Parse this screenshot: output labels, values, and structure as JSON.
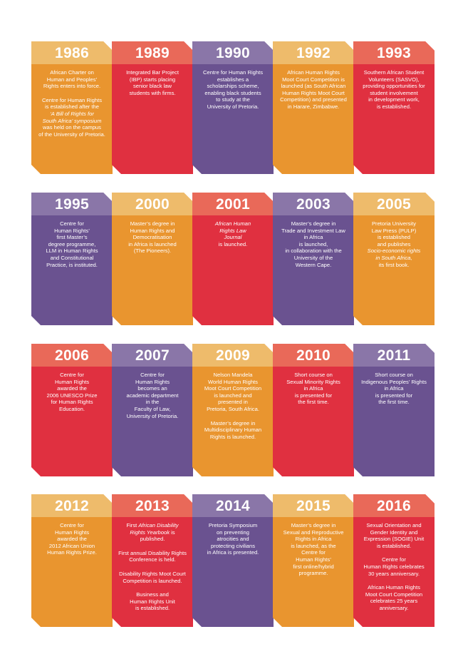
{
  "rows": [
    [
      {
        "year": "1986",
        "color": "orange",
        "paras": [
          [
            {
              "t": "African Charter on"
            },
            {
              "t": "Human and Peoples’"
            },
            {
              "t": "Rights enters into force."
            }
          ],
          [
            {
              "t": "Centre for Human Rights"
            },
            {
              "t": "is established after the"
            },
            {
              "t": "‘A Bill of Rights for",
              "i": true
            },
            {
              "t": "South Africa’ symposium",
              "i": true
            },
            {
              "t": "was held on the campus"
            },
            {
              "t": "of the University of Pretoria."
            }
          ]
        ]
      },
      {
        "year": "1989",
        "color": "red",
        "paras": [
          [
            {
              "t": "Integrated Bar Project"
            },
            {
              "t": "(IBP) starts placing"
            },
            {
              "t": "senior black law"
            },
            {
              "t": "students with firms."
            }
          ]
        ]
      },
      {
        "year": "1990",
        "color": "purple",
        "paras": [
          [
            {
              "t": "Centre for Human Rights"
            },
            {
              "t": "establishes a"
            },
            {
              "t": "scholarships scheme,"
            },
            {
              "t": "enabling black students"
            },
            {
              "t": "to study at the"
            },
            {
              "t": "University of Pretoria."
            }
          ]
        ]
      },
      {
        "year": "1992",
        "color": "orange",
        "paras": [
          [
            {
              "t": "African Human Rights"
            },
            {
              "t": "Moot Court Competition is"
            },
            {
              "t": "launched (as South African"
            },
            {
              "t": "Human Rights Moot Court"
            },
            {
              "t": "Competition) and presented"
            },
            {
              "t": "in Harare, Zimbabwe."
            }
          ]
        ]
      },
      {
        "year": "1993",
        "color": "red",
        "paras": [
          [
            {
              "t": "Southern African Student"
            },
            {
              "t": "Volunteers (SASVO),"
            },
            {
              "t": "providing opportunities for"
            },
            {
              "t": "student involvement"
            },
            {
              "t": "in development work,"
            },
            {
              "t": "is established."
            }
          ]
        ]
      }
    ],
    [
      {
        "year": "1995",
        "color": "purple",
        "paras": [
          [
            {
              "t": "Centre for"
            },
            {
              "t": "Human Rights’"
            },
            {
              "t": "first Master’s"
            },
            {
              "t": "degree programme,"
            },
            {
              "t": "LLM in Human Rights"
            },
            {
              "t": "and Constitutional"
            },
            {
              "t": "Practice, is instituted."
            }
          ]
        ]
      },
      {
        "year": "2000",
        "color": "orange",
        "paras": [
          [
            {
              "t": "Master’s degree in"
            },
            {
              "t": "Human Rights and"
            },
            {
              "t": "Democratisation"
            },
            {
              "t": "in Africa is launched"
            },
            {
              "t": "(The Pioneers)."
            }
          ]
        ]
      },
      {
        "year": "2001",
        "color": "red",
        "paras": [
          [
            {
              "t": "African Human",
              "i": true
            },
            {
              "t": "Rights Law",
              "i": true
            },
            {
              "t": "Journal",
              "i": true
            },
            {
              "t": "is launched."
            }
          ]
        ]
      },
      {
        "year": "2003",
        "color": "purple",
        "paras": [
          [
            {
              "t": "Master’s degree in"
            },
            {
              "t": "Trade and Investment Law"
            },
            {
              "t": "in Africa"
            },
            {
              "t": "is launched,"
            },
            {
              "t": "in collaboration with the"
            },
            {
              "t": "University of the"
            },
            {
              "t": "Western Cape."
            }
          ]
        ]
      },
      {
        "year": "2005",
        "color": "orange",
        "paras": [
          [
            {
              "t": "Pretoria University"
            },
            {
              "t": "Law Press (PULP)"
            },
            {
              "t": "is established"
            },
            {
              "t": "and publishes"
            },
            {
              "t": "Socio-economic rights",
              "i": true
            },
            {
              "t": "in South Africa,",
              "i": true
            },
            {
              "t": "its first book."
            }
          ]
        ]
      }
    ],
    [
      {
        "year": "2006",
        "color": "red",
        "paras": [
          [
            {
              "t": "Centre for"
            },
            {
              "t": "Human Rights"
            },
            {
              "t": "awarded the"
            },
            {
              "t": "2006 UNESCO Prize"
            },
            {
              "t": "for Human Rights"
            },
            {
              "t": "Education."
            }
          ]
        ]
      },
      {
        "year": "2007",
        "color": "purple",
        "paras": [
          [
            {
              "t": "Centre for"
            },
            {
              "t": "Human Rights"
            },
            {
              "t": "becomes an"
            },
            {
              "t": "academic department"
            },
            {
              "t": "in the"
            },
            {
              "t": "Faculty of Law,"
            },
            {
              "t": "University of Pretoria."
            }
          ]
        ]
      },
      {
        "year": "2009",
        "color": "orange",
        "paras": [
          [
            {
              "t": "Nelson Mandela"
            },
            {
              "t": "World Human Rights"
            },
            {
              "t": "Moot Court Competition"
            },
            {
              "t": "is launched and"
            },
            {
              "t": "presented in"
            },
            {
              "t": "Pretoria, South Africa."
            }
          ],
          [
            {
              "t": "Master’s degree in"
            },
            {
              "t": "Multidisciplinary Human"
            },
            {
              "t": "Rights is launched."
            }
          ]
        ]
      },
      {
        "year": "2010",
        "color": "red",
        "paras": [
          [
            {
              "t": "Short course on"
            },
            {
              "t": "Sexual Minority Rights"
            },
            {
              "t": "in Africa"
            },
            {
              "t": "is presented for"
            },
            {
              "t": "the first time."
            }
          ]
        ]
      },
      {
        "year": "2011",
        "color": "purple",
        "paras": [
          [
            {
              "t": "Short course on"
            },
            {
              "t": "Indigenous Peoples’ Rights"
            },
            {
              "t": "in Africa"
            },
            {
              "t": "is presented for"
            },
            {
              "t": "the first time."
            }
          ]
        ]
      }
    ],
    [
      {
        "year": "2012",
        "color": "orange",
        "paras": [
          [
            {
              "t": "Centre for"
            },
            {
              "t": "Human Rights"
            },
            {
              "t": "awarded the"
            },
            {
              "t": "2012 African Union"
            },
            {
              "t": "Human Rights Prize."
            }
          ]
        ]
      },
      {
        "year": "2013",
        "color": "red",
        "paras": [
          [
            {
              "t": "First African Disability",
              "ip": "African Disability",
              "pre": "First "
            },
            {
              "t": "Rights Yearbook is",
              "ip": "Rights Yearbook",
              "post": " is"
            },
            {
              "t": "published."
            }
          ],
          [
            {
              "t": "First annual Disability Rights"
            },
            {
              "t": "Conference is held."
            }
          ],
          [
            {
              "t": "Disability Rights Moot Court"
            },
            {
              "t": "Competition is launched."
            }
          ],
          [
            {
              "t": "Business and"
            },
            {
              "t": "Human Rights Unit"
            },
            {
              "t": "is established."
            }
          ]
        ]
      },
      {
        "year": "2014",
        "color": "purple",
        "paras": [
          [
            {
              "t": "Pretoria Symposium"
            },
            {
              "t": "on preventing"
            },
            {
              "t": "atrocities and"
            },
            {
              "t": "protecting civilians"
            },
            {
              "t": "in Africa is presented."
            }
          ]
        ]
      },
      {
        "year": "2015",
        "color": "orange",
        "paras": [
          [
            {
              "t": "Master’s degree in"
            },
            {
              "t": "Sexual and Reproductive"
            },
            {
              "t": "Rights in Africa"
            },
            {
              "t": "is launched, as the"
            },
            {
              "t": "Centre for"
            },
            {
              "t": "Human Rights’"
            },
            {
              "t": "first online/hybrid"
            },
            {
              "t": "programme."
            }
          ]
        ]
      },
      {
        "year": "2016",
        "color": "red",
        "paras": [
          [
            {
              "t": "Sexual Orientation and"
            },
            {
              "t": "Gender Identity and"
            },
            {
              "t": "Expression (SOGIE) Unit"
            },
            {
              "t": "is established."
            }
          ],
          [
            {
              "t": "Centre for"
            },
            {
              "t": "Human Rights celebrates"
            },
            {
              "t": "30 years anniversary."
            }
          ],
          [
            {
              "t": "African Human Rights"
            },
            {
              "t": "Moot Court Competition"
            },
            {
              "t": "celebrates 25 years"
            },
            {
              "t": "anniversary."
            }
          ]
        ]
      }
    ]
  ],
  "colors": {
    "orange": "#e9952f",
    "orange_light": "#eebb6b",
    "red": "#e03040",
    "red_light": "#e96959",
    "purple": "#6a5290",
    "purple_light": "#8a76a8"
  }
}
